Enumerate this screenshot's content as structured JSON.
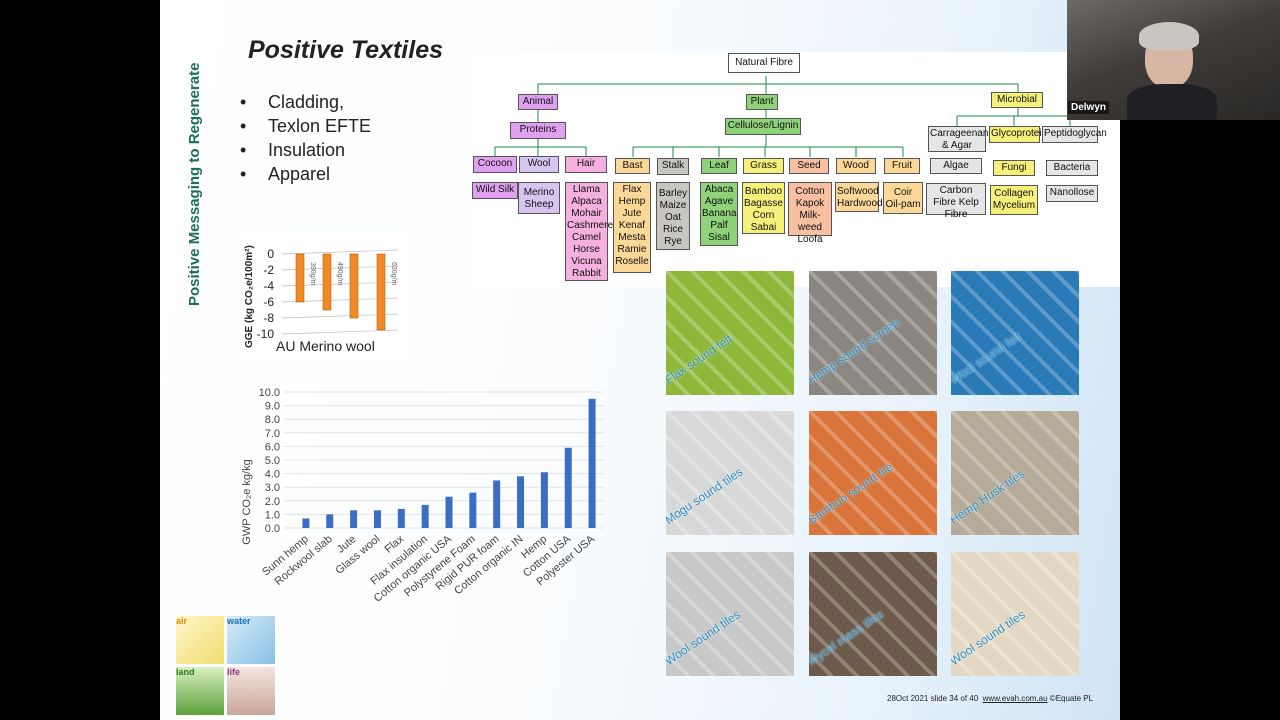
{
  "slide": {
    "vertical_title": "Positive Messaging to Regenerate",
    "title": "Positive Textiles",
    "bullets": [
      "Cladding,",
      "Texlon EFTE",
      "Insulation",
      "Apparel"
    ],
    "footer": {
      "text": "28Oct 2021 slide 34 of 40",
      "url": "www.evah.com.au",
      "copyright": "©Equate PL"
    }
  },
  "video": {
    "participant_name": "Delwyn"
  },
  "tree": {
    "root": "Natural Fibre",
    "animal": "Animal",
    "plant": "Plant",
    "microbial": "Microbial",
    "proteins": "Proteins",
    "cellulose": "Cellulose/Lignin",
    "cocoon": "Cocoon",
    "wool": "Wool",
    "hair": "Hair",
    "wild_silk": "Wild Silk",
    "merino": "Merino Sheep",
    "hair_list": "Llama Alpaca Mohair Cashmere Camel Horse Vicuna Rabbit",
    "bast": "Bast",
    "stalk": "Stalk",
    "leaf": "Leaf",
    "grass": "Grass",
    "seed": "Seed",
    "wood": "Wood",
    "fruit": "Fruit",
    "bast_list": "Flax Hemp Jute Kenaf Mesta Ramie Roselle",
    "stalk_list": "Barley Maize Oat Rice Rye",
    "leaf_list": "Abaca Agave Banana Palf Sisal",
    "grass_list": "Bamboo Bagasse Corn Sabai",
    "seed_list": "Cotton Kapok Milk-weed Loofa",
    "wood_list": "Softwood Hardwood",
    "fruit_list": "Coir Oil-pam",
    "carrageenan": "Carrageenan & Agar",
    "glycoprotein": "Glycoprotein",
    "peptidoglycan": "Peptidoglycan",
    "algae": "Algae",
    "fungi": "Fungi",
    "bacteria": "Bacteria",
    "algae_list": "Carbon Fibre Kelp Fibre",
    "fungi_list": "Collagen Mycelium",
    "bacteria_list": "Nanollose"
  },
  "tiles": [
    {
      "caption": "Flax sound felt",
      "color": "#8fb83a"
    },
    {
      "caption": "Hemp sound screen",
      "color": "#8b8680"
    },
    {
      "caption": "Wool sound felt",
      "color": "#2a7ab8"
    },
    {
      "caption": "Mogu sound tiles",
      "color": "#d8d8d8"
    },
    {
      "caption": "Bamboo sound tile",
      "color": "#d9743a"
    },
    {
      "caption": "Hemp Husk tiles",
      "color": "#b6aa98"
    },
    {
      "caption": "Wool sound tiles",
      "color": "#c8c8c8"
    },
    {
      "caption": "Mycel mass tiles",
      "color": "#6e5a4a"
    },
    {
      "caption": "Wool sound tiles",
      "color": "#e3d8c3"
    }
  ],
  "charts_text": {
    "merino_ylabel": "GGE (kg CO₂e/100m²)",
    "merino_caption": "AU Merino wool",
    "merino_series": [
      "390g/m",
      "490g/m",
      "630g/m"
    ],
    "gwp_ylabel": "GWP CO₂e kg/kg"
  },
  "chart_data": [
    {
      "type": "bar",
      "categories": [
        "390g/m",
        "490g/m",
        "",
        "630g/m"
      ],
      "values": [
        -6,
        -7,
        -8,
        -9.5
      ],
      "xlabel": "AU Merino wool",
      "ylabel": "GGE (kg CO₂e/100m²)",
      "ylim": [
        -10,
        0
      ],
      "yticks": [
        0,
        -2,
        -4,
        -6,
        -8,
        -10
      ],
      "color": "#f08a24"
    },
    {
      "type": "bar",
      "categories": [
        "Sunn hemp",
        "Rockwool slab",
        "Jute",
        "Glass wool",
        "Flax",
        "Flax insulation",
        "Cotton organic USA",
        "Polystyrene Foam",
        "Rigid PUR foam",
        "Cotton organic IN",
        "Hemp",
        "Cotton USA",
        "Polyester USA"
      ],
      "values": [
        0.7,
        1.0,
        1.3,
        1.3,
        1.4,
        1.7,
        2.3,
        2.6,
        3.5,
        3.8,
        4.1,
        5.9,
        9.5
      ],
      "ylabel": "GWP CO₂e kg/kg",
      "ylim": [
        0,
        10
      ],
      "yticks": [
        "0.0",
        "1.0",
        "2.0",
        "3.0",
        "4.0",
        "5.0",
        "6.0",
        "7.0",
        "8.0",
        "9.0",
        "10.0"
      ],
      "grid": true,
      "color": "#3b6dc4"
    }
  ],
  "logo": {
    "air": "air",
    "water": "water",
    "land": "land",
    "life": "life"
  }
}
